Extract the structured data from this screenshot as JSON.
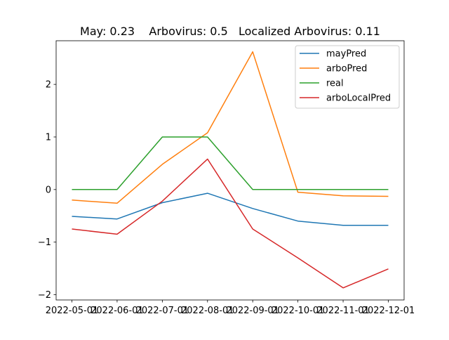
{
  "chart_data": {
    "type": "line",
    "title": "May: 0.23    Arbovirus: 0.5   Localized Arbovirus: 0.11",
    "xlabel": "",
    "ylabel": "",
    "x": [
      "2022-05-01",
      "2022-06-01",
      "2022-07-01",
      "2022-08-01",
      "2022-09-01",
      "2022-10-01",
      "2022-11-01",
      "2022-12-01"
    ],
    "ylim": [
      -2.1,
      2.83
    ],
    "yticks": [
      -2,
      -1,
      0,
      1,
      2
    ],
    "ytick_labels": [
      "−2",
      "−1",
      "0",
      "1",
      "2"
    ],
    "grid": false,
    "legend_position": "top-right",
    "series": [
      {
        "name": "mayPred",
        "color": "#1f77b4",
        "values": [
          -0.51,
          -0.56,
          -0.25,
          -0.07,
          -0.36,
          -0.6,
          -0.68,
          -0.68
        ]
      },
      {
        "name": "arboPred",
        "color": "#ff7f0e",
        "values": [
          -0.2,
          -0.26,
          0.48,
          1.08,
          2.62,
          -0.05,
          -0.12,
          -0.13
        ]
      },
      {
        "name": "real",
        "color": "#2ca02c",
        "values": [
          0,
          0,
          1,
          1,
          0,
          0,
          0,
          0
        ]
      },
      {
        "name": "arboLocalPred",
        "color": "#d62728",
        "values": [
          -0.75,
          -0.85,
          -0.22,
          0.58,
          -0.75,
          -1.3,
          -1.87,
          -1.51
        ]
      }
    ]
  }
}
